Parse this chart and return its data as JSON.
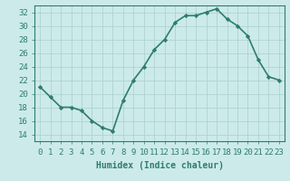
{
  "x": [
    0,
    1,
    2,
    3,
    4,
    5,
    6,
    7,
    8,
    9,
    10,
    11,
    12,
    13,
    14,
    15,
    16,
    17,
    18,
    19,
    20,
    21,
    22,
    23
  ],
  "y": [
    21,
    19.5,
    18,
    18,
    17.5,
    16,
    15,
    14.5,
    19,
    22,
    24,
    26.5,
    28,
    30.5,
    31.5,
    31.5,
    32,
    32.5,
    31,
    30,
    28.5,
    25,
    22.5,
    22
  ],
  "line_color": "#2e7d6e",
  "marker": "D",
  "marker_size": 2.2,
  "line_width": 1.2,
  "xlabel": "Humidex (Indice chaleur)",
  "xlim": [
    -0.5,
    23.5
  ],
  "ylim": [
    13,
    33
  ],
  "yticks": [
    14,
    16,
    18,
    20,
    22,
    24,
    26,
    28,
    30,
    32
  ],
  "xticks": [
    0,
    1,
    2,
    3,
    4,
    5,
    6,
    7,
    8,
    9,
    10,
    11,
    12,
    13,
    14,
    15,
    16,
    17,
    18,
    19,
    20,
    21,
    22,
    23
  ],
  "xtick_labels": [
    "0",
    "1",
    "2",
    "3",
    "4",
    "5",
    "6",
    "7",
    "8",
    "9",
    "10",
    "11",
    "12",
    "13",
    "14",
    "15",
    "16",
    "17",
    "18",
    "19",
    "20",
    "21",
    "22",
    "23"
  ],
  "background_color": "#cceaea",
  "grid_color": "#aacece",
  "line_label_color": "#2e7d6e",
  "xlabel_fontsize": 7,
  "tick_fontsize": 6.5
}
